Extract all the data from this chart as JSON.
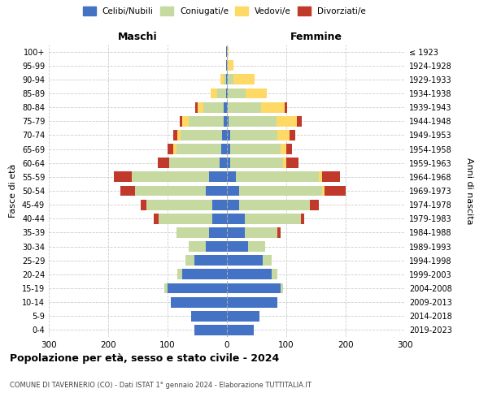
{
  "age_groups": [
    "0-4",
    "5-9",
    "10-14",
    "15-19",
    "20-24",
    "25-29",
    "30-34",
    "35-39",
    "40-44",
    "45-49",
    "50-54",
    "55-59",
    "60-64",
    "65-69",
    "70-74",
    "75-79",
    "80-84",
    "85-89",
    "90-94",
    "95-99",
    "100+"
  ],
  "birth_years": [
    "2019-2023",
    "2014-2018",
    "2009-2013",
    "2004-2008",
    "1999-2003",
    "1994-1998",
    "1989-1993",
    "1984-1988",
    "1979-1983",
    "1974-1978",
    "1969-1973",
    "1964-1968",
    "1959-1963",
    "1954-1958",
    "1949-1953",
    "1944-1948",
    "1939-1943",
    "1934-1938",
    "1929-1933",
    "1924-1928",
    "≤ 1923"
  ],
  "colors": {
    "celibi": "#4472C4",
    "coniugati": "#c5d9a0",
    "vedovi": "#ffd965",
    "divorziati": "#c0392b"
  },
  "maschi": {
    "celibi": [
      55,
      60,
      95,
      100,
      75,
      55,
      35,
      30,
      25,
      25,
      35,
      30,
      12,
      10,
      8,
      5,
      5,
      2,
      1,
      1,
      1
    ],
    "coniugati": [
      0,
      0,
      0,
      5,
      8,
      15,
      30,
      55,
      90,
      110,
      120,
      130,
      85,
      75,
      70,
      60,
      35,
      15,
      5,
      0,
      0
    ],
    "vedovi": [
      0,
      0,
      0,
      0,
      0,
      0,
      0,
      0,
      0,
      0,
      0,
      0,
      0,
      5,
      5,
      10,
      10,
      10,
      5,
      0,
      0
    ],
    "divorziati": [
      0,
      0,
      0,
      0,
      0,
      0,
      0,
      0,
      8,
      10,
      25,
      30,
      20,
      10,
      8,
      5,
      3,
      0,
      0,
      0,
      0
    ]
  },
  "femmine": {
    "celibi": [
      45,
      55,
      85,
      90,
      75,
      60,
      35,
      30,
      30,
      20,
      20,
      15,
      5,
      5,
      5,
      3,
      2,
      2,
      1,
      0,
      0
    ],
    "coniugati": [
      0,
      0,
      0,
      5,
      10,
      15,
      30,
      55,
      95,
      120,
      140,
      140,
      90,
      85,
      80,
      80,
      55,
      30,
      10,
      1,
      0
    ],
    "vedovi": [
      0,
      0,
      0,
      0,
      0,
      0,
      0,
      0,
      0,
      0,
      5,
      5,
      5,
      10,
      20,
      35,
      40,
      35,
      35,
      10,
      3
    ],
    "divorziati": [
      0,
      0,
      0,
      0,
      0,
      0,
      0,
      5,
      5,
      15,
      35,
      30,
      20,
      10,
      10,
      8,
      5,
      0,
      0,
      0,
      0
    ]
  },
  "xlim": 300,
  "title": "Popolazione per età, sesso e stato civile - 2024",
  "subtitle": "COMUNE DI TAVERNERIO (CO) - Dati ISTAT 1° gennaio 2024 - Elaborazione TUTTITALIA.IT",
  "ylabel_left": "Fasce di età",
  "ylabel_right": "Anni di nascita",
  "legend_labels": [
    "Celibi/Nubili",
    "Coniugati/e",
    "Vedovi/e",
    "Divorziati/e"
  ],
  "maschi_label": "Maschi",
  "femmine_label": "Femmine",
  "background_color": "#ffffff"
}
